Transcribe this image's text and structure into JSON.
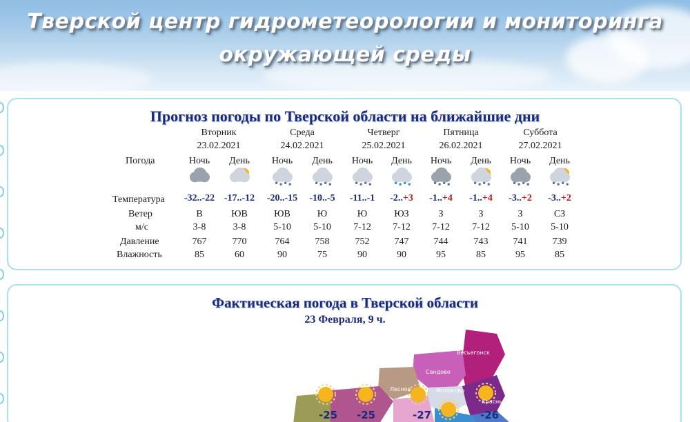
{
  "banner": {
    "title_line1": "Тверской центр гидрометеорологии и мониторинга",
    "title_line2": "окружающей среды"
  },
  "forecast": {
    "title": "Прогноз погоды по Тверской области на ближайшие дни",
    "row_labels": {
      "weather": "Погода",
      "temperature": "Температура",
      "wind": "Ветер",
      "wind_unit": "м/с",
      "pressure": "Давление",
      "humidity": "Влажность"
    },
    "days": [
      {
        "name": "Вторник",
        "date": "23.02.2021"
      },
      {
        "name": "Среда",
        "date": "24.02.2021"
      },
      {
        "name": "Четверг",
        "date": "25.02.2021"
      },
      {
        "name": "Пятница",
        "date": "26.02.2021"
      },
      {
        "name": "Суббота",
        "date": "27.02.2021"
      }
    ],
    "periods": [
      {
        "part": "Ночь",
        "icon": "cloudy-night-icon",
        "temp_a": "-32..",
        "temp_b": "-22",
        "b_positive": false,
        "wind_dir": "В",
        "wind_speed": "3-8",
        "pressure": "767",
        "humidity": "85"
      },
      {
        "part": "День",
        "icon": "partly-sunny-icon",
        "temp_a": "-17..",
        "temp_b": "-12",
        "b_positive": false,
        "wind_dir": "ЮВ",
        "wind_speed": "3-8",
        "pressure": "770",
        "humidity": "60"
      },
      {
        "part": "Ночь",
        "icon": "light-snow-icon",
        "temp_a": "-20..",
        "temp_b": "-15",
        "b_positive": false,
        "wind_dir": "ЮВ",
        "wind_speed": "5-10",
        "pressure": "764",
        "humidity": "90"
      },
      {
        "part": "День",
        "icon": "light-snow-icon",
        "temp_a": "-10..",
        "temp_b": "-5",
        "b_positive": false,
        "wind_dir": "Ю",
        "wind_speed": "5-10",
        "pressure": "758",
        "humidity": "75"
      },
      {
        "part": "Ночь",
        "icon": "light-snow-icon",
        "temp_a": "-11..",
        "temp_b": "-1",
        "b_positive": false,
        "wind_dir": "Ю",
        "wind_speed": "7-12",
        "pressure": "752",
        "humidity": "90"
      },
      {
        "part": "День",
        "icon": "sleet-icon",
        "temp_a": "-2..",
        "temp_b": "+3",
        "b_positive": true,
        "wind_dir": "ЮЗ",
        "wind_speed": "7-12",
        "pressure": "747",
        "humidity": "90"
      },
      {
        "part": "Ночь",
        "icon": "snow-cloud-icon",
        "temp_a": "-1..",
        "temp_b": "+4",
        "b_positive": true,
        "wind_dir": "З",
        "wind_speed": "7-12",
        "pressure": "744",
        "humidity": "95"
      },
      {
        "part": "День",
        "icon": "sun-snow-icon",
        "temp_a": "-1..",
        "temp_b": "+4",
        "b_positive": true,
        "wind_dir": "З",
        "wind_speed": "7-12",
        "pressure": "743",
        "humidity": "85"
      },
      {
        "part": "Ночь",
        "icon": "snow-cloud-icon",
        "temp_a": "-3..",
        "temp_b": "+2",
        "b_positive": true,
        "wind_dir": "З",
        "wind_speed": "5-10",
        "pressure": "741",
        "humidity": "95"
      },
      {
        "part": "День",
        "icon": "sun-snow-icon",
        "temp_a": "-3..",
        "temp_b": "+2",
        "b_positive": true,
        "wind_dir": "СЗ",
        "wind_speed": "5-10",
        "pressure": "739",
        "humidity": "85"
      }
    ]
  },
  "actual": {
    "title": "Фактическая погода в Тверской области",
    "subtitle": "23 Февраля, 9 ч.",
    "map_labels": [
      "Весьегонск",
      "Сандово",
      "Лесное",
      "Молоково",
      "Красный Холм"
    ],
    "map_temps": [
      "-25",
      "-25",
      "-27",
      "-26"
    ],
    "colors": {
      "accent": "#1a2b7a",
      "positive": "#c01818",
      "panel_border": "#a8e1ec"
    }
  }
}
